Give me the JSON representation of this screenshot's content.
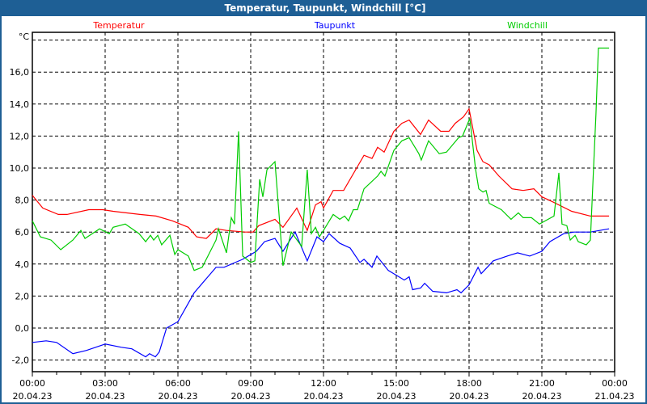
{
  "window": {
    "title": "Temperatur, Taupunkt, Windchill [°C]"
  },
  "chart_data": {
    "type": "line",
    "title": "Temperatur, Taupunkt, Windchill [°C]",
    "ylabel": "°C",
    "xlabel": "",
    "x_unit": "hours since 20.04.23 00:00",
    "xlim": [
      0,
      24
    ],
    "ylim": [
      -2.7,
      18.6
    ],
    "grid": true,
    "yticks": [
      -2,
      0,
      2,
      4,
      6,
      8,
      10,
      12,
      14,
      16,
      18
    ],
    "ytick_labels": [
      "-2,0",
      "0,0",
      "2,0",
      "4,0",
      "6,0",
      "8,0",
      "10,0",
      "12,0",
      "14,0",
      "16,0",
      ""
    ],
    "xticks": [
      {
        "h": 0,
        "time": "00:00",
        "date": "20.04.23"
      },
      {
        "h": 3,
        "time": "03:00",
        "date": "20.04.23"
      },
      {
        "h": 6,
        "time": "06:00",
        "date": "20.04.23"
      },
      {
        "h": 9,
        "time": "09:00",
        "date": "20.04.23"
      },
      {
        "h": 12,
        "time": "12:00",
        "date": "20.04.23"
      },
      {
        "h": 15,
        "time": "15:00",
        "date": "20.04.23"
      },
      {
        "h": 18,
        "time": "18:00",
        "date": "20.04.23"
      },
      {
        "h": 21,
        "time": "21:00",
        "date": "20.04.23"
      },
      {
        "h": 24,
        "time": "00:00",
        "date": "21.04.23"
      }
    ],
    "legend_placement": "top",
    "series": [
      {
        "name": "Temperatur",
        "color": "#ff0000",
        "points": [
          [
            0,
            8.3
          ],
          [
            0.43,
            7.5
          ],
          [
            1.07,
            7.1
          ],
          [
            1.43,
            7.1
          ],
          [
            2.33,
            7.4
          ],
          [
            2.9,
            7.4
          ],
          [
            3.33,
            7.3
          ],
          [
            4.43,
            7.1
          ],
          [
            5.1,
            7.0
          ],
          [
            5.77,
            6.7
          ],
          [
            6.43,
            6.3
          ],
          [
            6.77,
            5.7
          ],
          [
            7.17,
            5.6
          ],
          [
            7.57,
            6.2
          ],
          [
            8,
            6.1
          ],
          [
            8.77,
            6.0
          ],
          [
            9.1,
            6.0
          ],
          [
            9.33,
            6.4
          ],
          [
            10,
            6.8
          ],
          [
            10.33,
            6.3
          ],
          [
            10.9,
            7.5
          ],
          [
            11.33,
            6.1
          ],
          [
            11.67,
            7.7
          ],
          [
            11.9,
            7.9
          ],
          [
            12,
            7.5
          ],
          [
            12.4,
            8.6
          ],
          [
            12.83,
            8.6
          ],
          [
            13.67,
            10.8
          ],
          [
            14,
            10.6
          ],
          [
            14.23,
            11.3
          ],
          [
            14.5,
            11.0
          ],
          [
            14.9,
            12.3
          ],
          [
            15.23,
            12.8
          ],
          [
            15.53,
            13.0
          ],
          [
            16,
            12.1
          ],
          [
            16.33,
            13.0
          ],
          [
            16.83,
            12.3
          ],
          [
            17.17,
            12.3
          ],
          [
            17.43,
            12.8
          ],
          [
            17.77,
            13.2
          ],
          [
            18,
            13.7
          ],
          [
            18.33,
            11.1
          ],
          [
            18.57,
            10.4
          ],
          [
            18.83,
            10.2
          ],
          [
            19.23,
            9.5
          ],
          [
            19.77,
            8.7
          ],
          [
            20.23,
            8.6
          ],
          [
            20.67,
            8.7
          ],
          [
            21,
            8.2
          ],
          [
            21.43,
            7.9
          ],
          [
            22.23,
            7.3
          ],
          [
            23,
            7.0
          ],
          [
            23.33,
            7.0
          ],
          [
            23.77,
            7.0
          ]
        ]
      },
      {
        "name": "Taupunkt",
        "color": "#0000ff",
        "points": [
          [
            0,
            -0.9
          ],
          [
            0.57,
            -0.8
          ],
          [
            1,
            -0.9
          ],
          [
            1.67,
            -1.6
          ],
          [
            2.23,
            -1.4
          ],
          [
            3,
            -1.0
          ],
          [
            3.67,
            -1.2
          ],
          [
            4.1,
            -1.3
          ],
          [
            4.67,
            -1.8
          ],
          [
            4.83,
            -1.6
          ],
          [
            5.07,
            -1.8
          ],
          [
            5.23,
            -1.5
          ],
          [
            5.53,
            0.0
          ],
          [
            6,
            0.4
          ],
          [
            6.67,
            2.2
          ],
          [
            7.57,
            3.8
          ],
          [
            7.9,
            3.8
          ],
          [
            8.67,
            4.3
          ],
          [
            9.23,
            4.8
          ],
          [
            9.57,
            5.4
          ],
          [
            10,
            5.6
          ],
          [
            10.33,
            4.8
          ],
          [
            10.83,
            6.0
          ],
          [
            11.33,
            4.2
          ],
          [
            11.73,
            5.7
          ],
          [
            12,
            5.4
          ],
          [
            12.23,
            5.9
          ],
          [
            12.67,
            5.3
          ],
          [
            13.1,
            5.0
          ],
          [
            13.5,
            4.1
          ],
          [
            13.67,
            4.3
          ],
          [
            14,
            3.8
          ],
          [
            14.2,
            4.5
          ],
          [
            14.67,
            3.6
          ],
          [
            15.33,
            3.0
          ],
          [
            15.53,
            3.2
          ],
          [
            15.67,
            2.4
          ],
          [
            16,
            2.5
          ],
          [
            16.17,
            2.8
          ],
          [
            16.5,
            2.3
          ],
          [
            17.07,
            2.2
          ],
          [
            17.5,
            2.4
          ],
          [
            17.67,
            2.2
          ],
          [
            18,
            2.7
          ],
          [
            18.37,
            3.8
          ],
          [
            18.5,
            3.4
          ],
          [
            19,
            4.2
          ],
          [
            19.57,
            4.5
          ],
          [
            20,
            4.7
          ],
          [
            20.5,
            4.5
          ],
          [
            21,
            4.8
          ],
          [
            21.33,
            5.4
          ],
          [
            21.9,
            5.9
          ],
          [
            22.33,
            6.0
          ],
          [
            23,
            6.0
          ],
          [
            23.77,
            6.2
          ]
        ]
      },
      {
        "name": "Windchill",
        "color": "#00cc00",
        "points": [
          [
            0,
            6.7
          ],
          [
            0.33,
            5.7
          ],
          [
            0.77,
            5.5
          ],
          [
            1.17,
            4.9
          ],
          [
            1.67,
            5.5
          ],
          [
            2,
            6.1
          ],
          [
            2.17,
            5.6
          ],
          [
            2.77,
            6.2
          ],
          [
            3.17,
            5.9
          ],
          [
            3.33,
            6.3
          ],
          [
            3.83,
            6.5
          ],
          [
            4.4,
            5.9
          ],
          [
            4.67,
            5.4
          ],
          [
            4.87,
            5.8
          ],
          [
            5,
            5.5
          ],
          [
            5.17,
            5.8
          ],
          [
            5.33,
            5.2
          ],
          [
            5.67,
            5.8
          ],
          [
            5.87,
            4.6
          ],
          [
            6,
            4.9
          ],
          [
            6.43,
            4.5
          ],
          [
            6.67,
            3.6
          ],
          [
            7,
            3.8
          ],
          [
            7.57,
            5.5
          ],
          [
            7.67,
            6.2
          ],
          [
            8,
            4.7
          ],
          [
            8.2,
            6.9
          ],
          [
            8.33,
            6.5
          ],
          [
            8.5,
            12.3
          ],
          [
            8.67,
            4.5
          ],
          [
            9,
            4.1
          ],
          [
            9.17,
            4.2
          ],
          [
            9.37,
            9.3
          ],
          [
            9.5,
            8.2
          ],
          [
            9.67,
            9.9
          ],
          [
            10,
            10.4
          ],
          [
            10.33,
            3.9
          ],
          [
            10.67,
            6.0
          ],
          [
            11.1,
            5.1
          ],
          [
            11.33,
            9.9
          ],
          [
            11.5,
            5.9
          ],
          [
            11.67,
            6.3
          ],
          [
            11.83,
            5.7
          ],
          [
            12,
            6.1
          ],
          [
            12.4,
            7.1
          ],
          [
            12.67,
            6.8
          ],
          [
            12.87,
            7.0
          ],
          [
            13.03,
            6.7
          ],
          [
            13.23,
            7.4
          ],
          [
            13.4,
            7.4
          ],
          [
            13.67,
            8.7
          ],
          [
            14.23,
            9.5
          ],
          [
            14.37,
            9.8
          ],
          [
            14.53,
            9.5
          ],
          [
            14.9,
            11.1
          ],
          [
            15.23,
            11.7
          ],
          [
            15.53,
            11.9
          ],
          [
            15.93,
            10.9
          ],
          [
            16.03,
            10.5
          ],
          [
            16.33,
            11.7
          ],
          [
            16.77,
            10.9
          ],
          [
            17.07,
            11.0
          ],
          [
            17.57,
            11.9
          ],
          [
            17.73,
            12.0
          ],
          [
            18.03,
            13.1
          ],
          [
            18.27,
            9.9
          ],
          [
            18.4,
            8.7
          ],
          [
            18.57,
            8.5
          ],
          [
            18.7,
            8.6
          ],
          [
            18.83,
            7.8
          ],
          [
            19.33,
            7.4
          ],
          [
            19.73,
            6.8
          ],
          [
            20.03,
            7.2
          ],
          [
            20.23,
            6.9
          ],
          [
            20.57,
            6.9
          ],
          [
            20.9,
            6.5
          ],
          [
            21.5,
            7.0
          ],
          [
            21.7,
            9.7
          ],
          [
            21.83,
            6.5
          ],
          [
            22.03,
            6.4
          ],
          [
            22.17,
            5.5
          ],
          [
            22.37,
            5.8
          ],
          [
            22.5,
            5.4
          ],
          [
            22.83,
            5.2
          ],
          [
            23,
            5.5
          ],
          [
            23.23,
            13.4
          ],
          [
            23.33,
            17.5
          ],
          [
            23.77,
            17.5
          ]
        ]
      }
    ]
  }
}
